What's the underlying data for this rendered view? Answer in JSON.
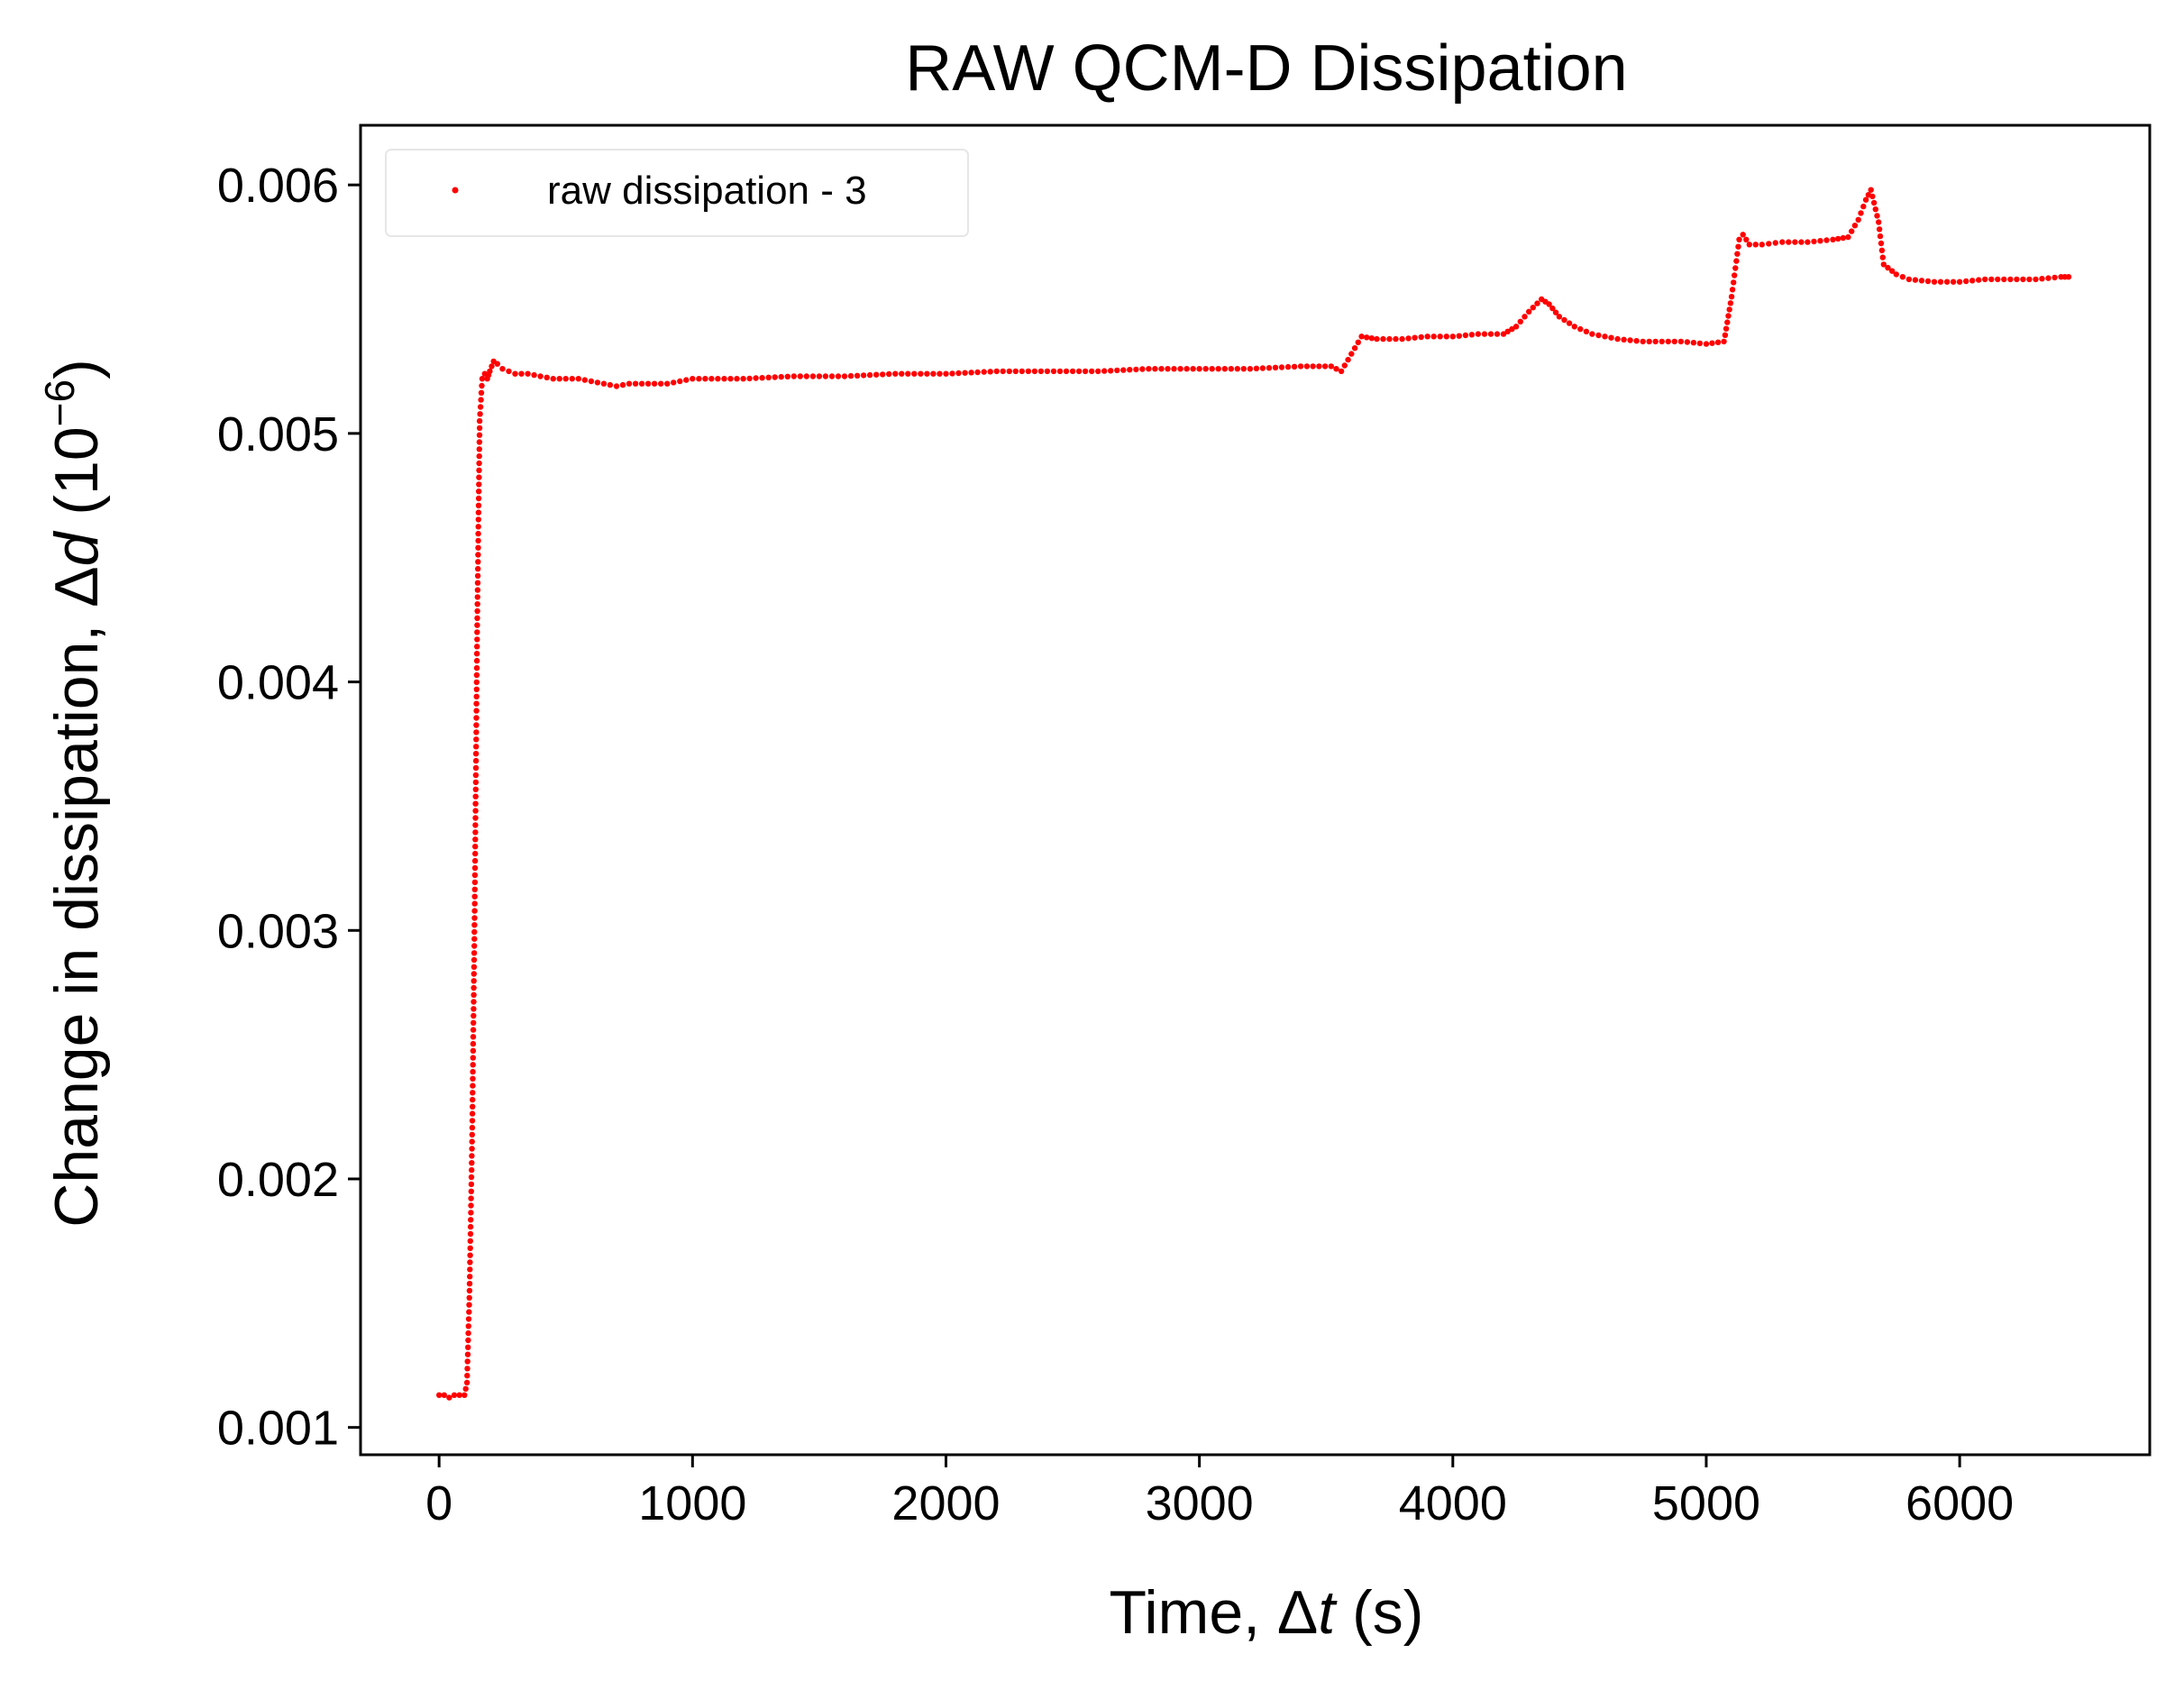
{
  "chart_data": {
    "type": "scatter",
    "title": "RAW QCM-D Dissipation",
    "xlabel": {
      "prefix": "Time, ",
      "symbol": "Δ",
      "var": "t",
      "suffix": " (s)"
    },
    "ylabel": {
      "prefix": "Change in dissipation, ",
      "symbol": "Δ",
      "var": "d",
      "suffix": " (10",
      "exp": "−6",
      "close": ")"
    },
    "xlim": [
      -310,
      6750
    ],
    "ylim": [
      0.00089,
      0.00624
    ],
    "xticks": [
      0,
      1000,
      2000,
      3000,
      4000,
      5000,
      6000
    ],
    "xtick_labels": [
      "0",
      "1000",
      "2000",
      "3000",
      "4000",
      "5000",
      "6000"
    ],
    "yticks": [
      0.001,
      0.002,
      0.003,
      0.004,
      0.005,
      0.006
    ],
    "ytick_labels": [
      "0.001",
      "0.002",
      "0.003",
      "0.004",
      "0.005",
      "0.006"
    ],
    "legend_position": "top-left",
    "series": [
      {
        "name": "raw dissipation - 3",
        "color": "#ff0000",
        "marker": "point",
        "x": [
          0,
          20,
          40,
          60,
          80,
          100,
          110,
          120,
          130,
          140,
          150,
          160,
          170,
          180,
          190,
          200,
          215,
          230,
          250,
          275,
          300,
          350,
          400,
          450,
          500,
          550,
          600,
          650,
          700,
          750,
          800,
          850,
          900,
          950,
          1000,
          1200,
          1400,
          1600,
          1800,
          2000,
          2200,
          2400,
          2600,
          2800,
          3000,
          3200,
          3400,
          3520,
          3560,
          3600,
          3640,
          3700,
          3800,
          3900,
          4000,
          4100,
          4200,
          4250,
          4300,
          4350,
          4380,
          4420,
          4480,
          4550,
          4650,
          4750,
          4900,
          5000,
          5070,
          5100,
          5130,
          5145,
          5170,
          5220,
          5300,
          5400,
          5500,
          5560,
          5600,
          5630,
          5650,
          5680,
          5700,
          5750,
          5800,
          5900,
          6000,
          6100,
          6200,
          6300,
          6400,
          6430
        ],
        "y": [
          0.00113,
          0.00113,
          0.00112,
          0.00113,
          0.00113,
          0.00113,
          0.00118,
          0.00155,
          0.00215,
          0.00305,
          0.0042,
          0.00505,
          0.00522,
          0.00524,
          0.00522,
          0.00525,
          0.00529,
          0.00528,
          0.00526,
          0.00525,
          0.00524,
          0.00524,
          0.00523,
          0.00522,
          0.00522,
          0.00522,
          0.00521,
          0.0052,
          0.00519,
          0.0052,
          0.0052,
          0.0052,
          0.0052,
          0.00521,
          0.00522,
          0.00522,
          0.00523,
          0.00523,
          0.00524,
          0.00524,
          0.00525,
          0.00525,
          0.00525,
          0.00526,
          0.00526,
          0.00526,
          0.00527,
          0.00527,
          0.00525,
          0.00532,
          0.00539,
          0.00538,
          0.00538,
          0.00539,
          0.00539,
          0.0054,
          0.0054,
          0.00543,
          0.00549,
          0.00554,
          0.00552,
          0.00547,
          0.00543,
          0.0054,
          0.00538,
          0.00537,
          0.00537,
          0.00536,
          0.00537,
          0.00555,
          0.00578,
          0.0058,
          0.00576,
          0.00576,
          0.00577,
          0.00577,
          0.00578,
          0.00579,
          0.00586,
          0.00594,
          0.00598,
          0.00585,
          0.00568,
          0.00564,
          0.00562,
          0.00561,
          0.00561,
          0.00562,
          0.00562,
          0.00562,
          0.00563,
          0.00563
        ]
      }
    ]
  }
}
